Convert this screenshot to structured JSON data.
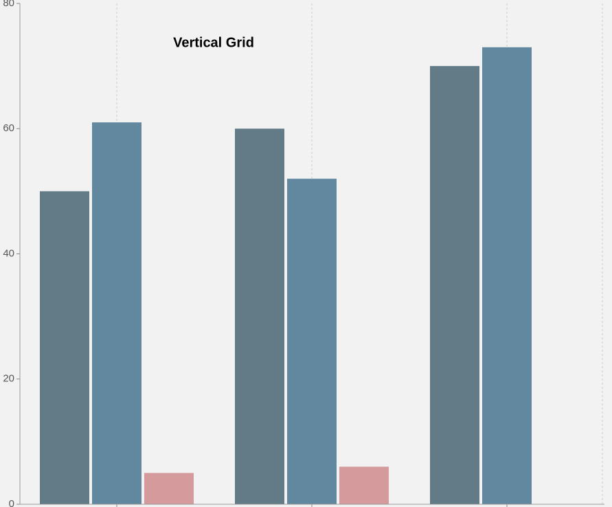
{
  "chart_data": {
    "type": "bar",
    "title": "Vertical Grid",
    "categories": [
      null,
      null,
      null
    ],
    "series": [
      {
        "color": "#637b87",
        "values": [
          50,
          60,
          70
        ]
      },
      {
        "color": "#62889f",
        "values": [
          61,
          52,
          73
        ]
      },
      {
        "color": "#d59a9c",
        "values": [
          5,
          6,
          null
        ]
      }
    ],
    "ylim": [
      0,
      80
    ],
    "yticks": [
      0,
      20,
      40,
      60,
      80
    ],
    "grid": "vertical"
  }
}
